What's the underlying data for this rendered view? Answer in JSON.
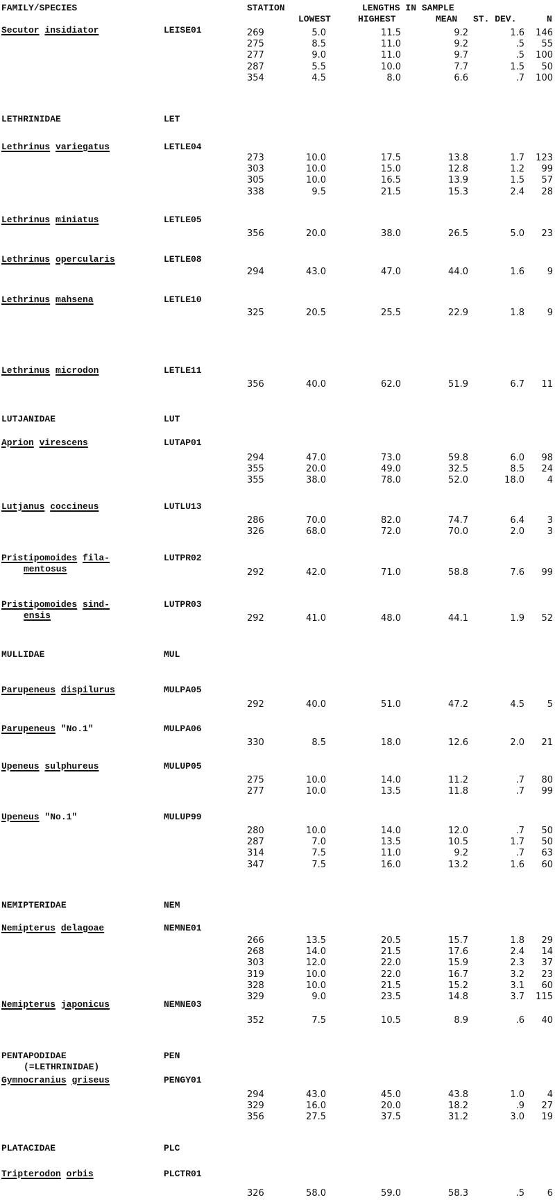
{
  "header": {
    "family_species": "FAMILY/SPECIES",
    "station": "STATION",
    "lengths": "LENGTHS IN SAMPLE",
    "lowest": "LOWEST",
    "highest": "HIGHEST",
    "mean": "MEAN",
    "stdev": "ST. DEV.",
    "n": "N"
  },
  "entries": [
    {
      "type": "species",
      "name": [
        [
          "Secutor",
          true
        ],
        [
          "insidiator",
          true
        ]
      ],
      "code": "LEISE01",
      "rows": [
        [
          "269",
          "5.0",
          "11.5",
          "9.2",
          "1.6",
          "146"
        ],
        [
          "275",
          "8.5",
          "11.0",
          "9.2",
          ".5",
          "55"
        ],
        [
          "277",
          "9.0",
          "11.0",
          "9.7",
          ".5",
          "100"
        ],
        [
          "287",
          "5.5",
          "10.0",
          "7.7",
          "1.5",
          "50"
        ],
        [
          "354",
          "4.5",
          "8.0",
          "6.6",
          ".7",
          "100"
        ]
      ]
    },
    {
      "type": "family",
      "name": "LETHRINIDAE",
      "code": "LET"
    },
    {
      "type": "species",
      "name": [
        [
          "Lethrinus",
          true
        ],
        [
          "variegatus",
          true
        ]
      ],
      "code": "LETLE04",
      "rows": [
        [
          "273",
          "10.0",
          "17.5",
          "13.8",
          "1.7",
          "123"
        ],
        [
          "303",
          "10.0",
          "15.0",
          "12.8",
          "1.2",
          "99"
        ],
        [
          "305",
          "10.0",
          "16.5",
          "13.9",
          "1.5",
          "57"
        ],
        [
          "338",
          "9.5",
          "21.5",
          "15.3",
          "2.4",
          "28"
        ]
      ]
    },
    {
      "type": "species",
      "name": [
        [
          "Lethrinus",
          true
        ],
        [
          "miniatus",
          true
        ]
      ],
      "code": "LETLE05",
      "rows": [
        [
          "356",
          "20.0",
          "38.0",
          "26.5",
          "5.0",
          "23"
        ]
      ]
    },
    {
      "type": "species",
      "name": [
        [
          "Lethrinus",
          true
        ],
        [
          "opercularis",
          true
        ]
      ],
      "code": "LETLE08",
      "rows": [
        [
          "294",
          "43.0",
          "47.0",
          "44.0",
          "1.6",
          "9"
        ]
      ]
    },
    {
      "type": "species",
      "name": [
        [
          "Lethrinus",
          true
        ],
        [
          "mahsena",
          true
        ]
      ],
      "code": "LETLE10",
      "rows": [
        [
          "325",
          "20.5",
          "25.5",
          "22.9",
          "1.8",
          "9"
        ]
      ]
    },
    {
      "type": "species",
      "name": [
        [
          "Lethrinus",
          true
        ],
        [
          "microdon",
          true
        ]
      ],
      "code": "LETLE11",
      "rows": [
        [
          "356",
          "40.0",
          "62.0",
          "51.9",
          "6.7",
          "11"
        ]
      ]
    },
    {
      "type": "family",
      "name": "LUTJANIDAE",
      "code": "LUT"
    },
    {
      "type": "species",
      "name": [
        [
          "Aprion",
          true
        ],
        [
          "virescens",
          true
        ]
      ],
      "code": "LUTAP01",
      "rows": [
        [
          "294",
          "47.0",
          "73.0",
          "59.8",
          "6.0",
          "98"
        ],
        [
          "355",
          "20.0",
          "49.0",
          "32.5",
          "8.5",
          "24"
        ],
        [
          "355",
          "38.0",
          "78.0",
          "52.0",
          "18.0",
          "4"
        ]
      ]
    },
    {
      "type": "species",
      "name": [
        [
          "Lutjanus",
          true
        ],
        [
          "coccineus",
          true
        ]
      ],
      "code": "LUTLU13",
      "rows": [
        [
          "286",
          "70.0",
          "82.0",
          "74.7",
          "6.4",
          "3"
        ],
        [
          "326",
          "68.0",
          "72.0",
          "70.0",
          "2.0",
          "3"
        ]
      ]
    },
    {
      "type": "species",
      "name": [
        [
          "Pristipomoides",
          true
        ],
        [
          "fila-",
          true
        ]
      ],
      "name2": "mentosus",
      "code": "LUTPR02",
      "rows": [
        [
          "292",
          "42.0",
          "71.0",
          "58.8",
          "7.6",
          "99"
        ]
      ]
    },
    {
      "type": "species",
      "name": [
        [
          "Pristipomoides",
          true
        ],
        [
          "sind-",
          true
        ]
      ],
      "name2": "ensis",
      "code": "LUTPR03",
      "rows": [
        [
          "292",
          "41.0",
          "48.0",
          "44.1",
          "1.9",
          "52"
        ]
      ]
    },
    {
      "type": "family",
      "name": "MULLIDAE",
      "code": "MUL"
    },
    {
      "type": "species",
      "name": [
        [
          "Parupeneus",
          true
        ],
        [
          "dispilurus",
          true
        ]
      ],
      "code": "MULPA05",
      "rows": [
        [
          "292",
          "40.0",
          "51.0",
          "47.2",
          "4.5",
          "5"
        ]
      ]
    },
    {
      "type": "species",
      "name": [
        [
          "Parupeneus",
          true
        ],
        [
          "\"No.1\"",
          false
        ]
      ],
      "code": "MULPA06",
      "rows": [
        [
          "330",
          "8.5",
          "18.0",
          "12.6",
          "2.0",
          "21"
        ]
      ]
    },
    {
      "type": "species",
      "name": [
        [
          "Upeneus",
          true
        ],
        [
          "sulphureus",
          true
        ]
      ],
      "code": "MULUP05",
      "rows": [
        [
          "275",
          "10.0",
          "14.0",
          "11.2",
          ".7",
          "80"
        ],
        [
          "277",
          "10.0",
          "13.5",
          "11.8",
          ".7",
          "99"
        ]
      ]
    },
    {
      "type": "species",
      "name": [
        [
          "Upeneus",
          true
        ],
        [
          "\"No.1\"",
          false
        ]
      ],
      "code": "MULUP99",
      "rows": [
        [
          "280",
          "10.0",
          "14.0",
          "12.0",
          ".7",
          "50"
        ],
        [
          "287",
          "7.0",
          "13.5",
          "10.5",
          "1.7",
          "50"
        ],
        [
          "314",
          "7.5",
          "11.0",
          "9.2",
          ".7",
          "63"
        ],
        [
          "347",
          "7.5",
          "16.0",
          "13.2",
          "1.6",
          "60"
        ]
      ]
    },
    {
      "type": "family",
      "name": "NEMIPTERIDAE",
      "code": "NEM"
    },
    {
      "type": "species",
      "name": [
        [
          "Nemipterus",
          true
        ],
        [
          "delagoae",
          true
        ]
      ],
      "code": "NEMNE01",
      "rows": [
        [
          "266",
          "13.5",
          "20.5",
          "15.7",
          "1.8",
          "29"
        ],
        [
          "268",
          "14.0",
          "21.5",
          "17.6",
          "2.4",
          "14"
        ],
        [
          "303",
          "12.0",
          "22.0",
          "15.9",
          "2.3",
          "37"
        ],
        [
          "319",
          "10.0",
          "22.0",
          "16.7",
          "3.2",
          "23"
        ],
        [
          "328",
          "10.0",
          "21.5",
          "15.2",
          "3.1",
          "60"
        ],
        [
          "329",
          "9.0",
          "23.5",
          "14.8",
          "3.7",
          "115"
        ]
      ]
    },
    {
      "type": "species",
      "name": [
        [
          "Nemipterus",
          true
        ],
        [
          "japonicus",
          true
        ]
      ],
      "code": "NEMNE03",
      "rows": [
        [
          "352",
          "7.5",
          "10.5",
          "8.9",
          ".6",
          "40"
        ]
      ]
    },
    {
      "type": "family",
      "name": "PENTAPODIDAE",
      "code": "PEN",
      "note": "(=LETHRINIDAE)"
    },
    {
      "type": "species",
      "name": [
        [
          "Gymnocranius",
          true
        ],
        [
          "griseus",
          true
        ]
      ],
      "code": "PENGY01",
      "rows": [
        [
          "294",
          "43.0",
          "45.0",
          "43.8",
          "1.0",
          "4"
        ],
        [
          "329",
          "16.0",
          "20.0",
          "18.2",
          ".9",
          "27"
        ],
        [
          "356",
          "27.5",
          "37.5",
          "31.2",
          "3.0",
          "19"
        ]
      ]
    },
    {
      "type": "family",
      "name": "PLATACIDAE",
      "code": "PLC"
    },
    {
      "type": "species",
      "name": [
        [
          "Tripterodon",
          true
        ],
        [
          "orbis",
          true
        ]
      ],
      "code": "PLCTR01",
      "rows": [
        [
          "326",
          "58.0",
          "59.0",
          "58.3",
          ".5",
          "6"
        ]
      ]
    }
  ]
}
